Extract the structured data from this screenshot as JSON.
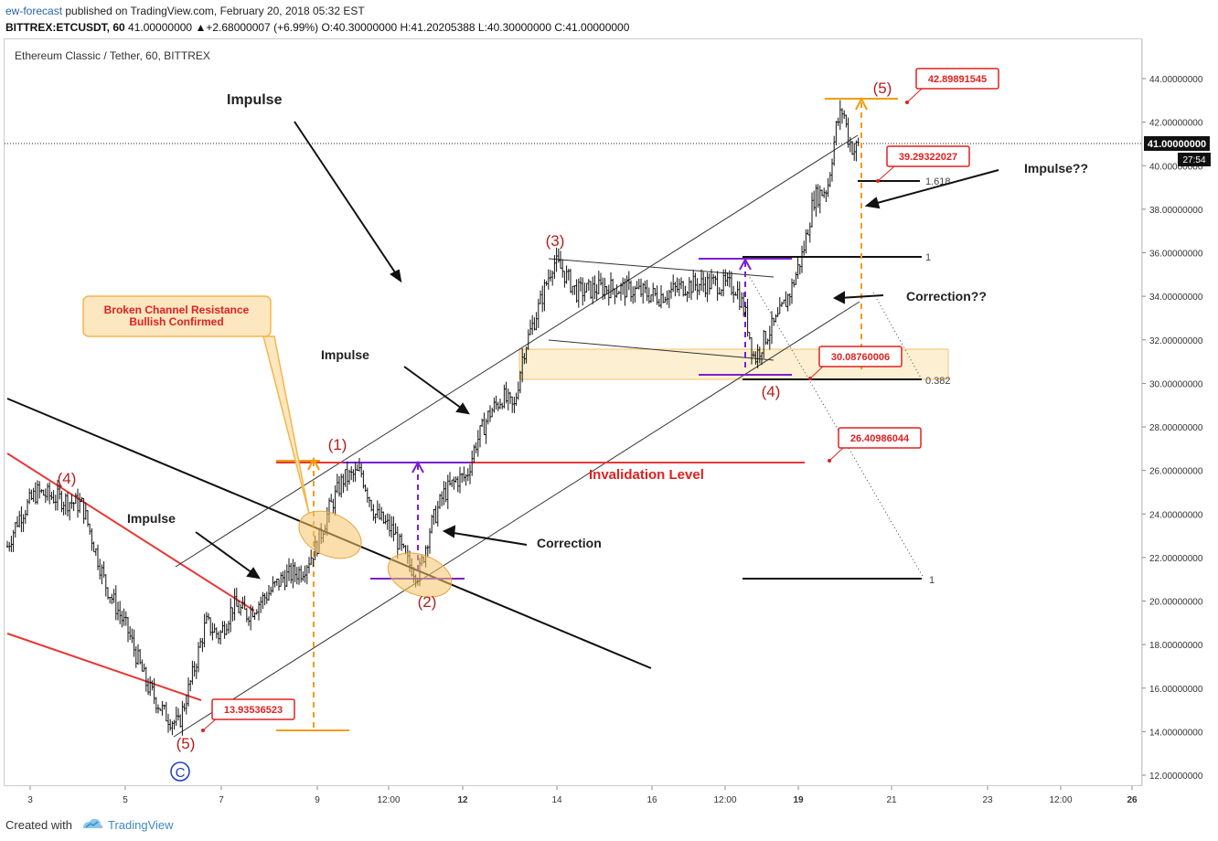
{
  "header": {
    "author": "ew-forecast",
    "published_text": "published on TradingView.com, February 20, 2018 05:32 EST",
    "ticker_line_prefix": "BITTREX:ETCUSDT, 60",
    "last_value": "41.00000000",
    "change": "+2.68000007 (+6.99%)",
    "ohlc": "O:40.30000000 H:41.20205388 L:40.30000000 C:41.00000000"
  },
  "symbol_title": "Ethereum Classic / Tether, 60, BITTREX",
  "footer": {
    "created_with": "Created with",
    "brand": "TradingView"
  },
  "colors": {
    "wave": "#b71c1c",
    "fib_orange": "#f39c12",
    "purple": "#7b1fd1",
    "red_line": "#e53935",
    "box_fill": "#fdf0d2",
    "label_red": "#e02020"
  },
  "chart_data": {
    "type": "candlestick",
    "ylim": [
      11.5,
      45.2
    ],
    "y_ticks": [
      "44.00000000",
      "42.00000000",
      "40.00000000",
      "38.00000000",
      "36.00000000",
      "34.00000000",
      "32.00000000",
      "30.00000000",
      "28.00000000",
      "26.00000000",
      "24.00000000",
      "22.00000000",
      "20.00000000",
      "18.00000000",
      "16.00000000",
      "14.00000000",
      "12.00000000"
    ],
    "x_ticks": [
      "3",
      "5",
      "7",
      "9",
      "12:00",
      "12",
      "14",
      "16",
      "12:00",
      "19",
      "21",
      "23",
      "12:00",
      "26"
    ],
    "current_price_label": "41.00000000",
    "countdown": "27:54",
    "price_path": [
      [
        7,
        22.4
      ],
      [
        20,
        23.8
      ],
      [
        40,
        25.0
      ],
      [
        65,
        24.7
      ],
      [
        90,
        24.4
      ],
      [
        115,
        20.8
      ],
      [
        140,
        18.6
      ],
      [
        160,
        16.2
      ],
      [
        180,
        14.8
      ],
      [
        195,
        14.3
      ],
      [
        210,
        16.5
      ],
      [
        225,
        19.0
      ],
      [
        240,
        18.4
      ],
      [
        255,
        19.8
      ],
      [
        270,
        19.4
      ],
      [
        290,
        20.2
      ],
      [
        310,
        21.1
      ],
      [
        330,
        21.4
      ],
      [
        345,
        22.4
      ],
      [
        360,
        24.2
      ],
      [
        375,
        25.6
      ],
      [
        395,
        25.9
      ],
      [
        410,
        24.0
      ],
      [
        430,
        23.2
      ],
      [
        445,
        21.8
      ],
      [
        458,
        21.2
      ],
      [
        470,
        23.3
      ],
      [
        485,
        24.9
      ],
      [
        500,
        25.6
      ],
      [
        510,
        25.7
      ],
      [
        520,
        27.2
      ],
      [
        535,
        28.6
      ],
      [
        550,
        29.4
      ],
      [
        562,
        28.8
      ],
      [
        572,
        31.4
      ],
      [
        590,
        33.6
      ],
      [
        605,
        35.6
      ],
      [
        615,
        35.2
      ],
      [
        630,
        34.2
      ],
      [
        660,
        34.4
      ],
      [
        690,
        34.3
      ],
      [
        720,
        34.0
      ],
      [
        750,
        34.5
      ],
      [
        780,
        34.6
      ],
      [
        805,
        34.4
      ],
      [
        815,
        33.2
      ],
      [
        825,
        31.1
      ],
      [
        838,
        32.2
      ],
      [
        850,
        32.9
      ],
      [
        865,
        34.3
      ],
      [
        878,
        36.0
      ],
      [
        890,
        38.5
      ],
      [
        905,
        39.0
      ],
      [
        915,
        41.9
      ],
      [
        922,
        42.6
      ],
      [
        928,
        41.2
      ],
      [
        934,
        40.7
      ],
      [
        940,
        41.0
      ]
    ],
    "annotations": {
      "wave_labels": [
        "(1)",
        "(2)",
        "(3)",
        "(4)",
        "(5)",
        "(4)",
        "(5)",
        "C"
      ],
      "text": [
        "Impulse",
        "Impulse",
        "Impulse",
        "Correction",
        "Impulse??",
        "Correction??",
        "Invalidation Level"
      ],
      "callout": "Broken Channel Resistance\nBullish Confirmed",
      "callout_line1": "Broken Channel Resistance",
      "callout_line2": "Bullish Confirmed",
      "price_boxes": [
        "42.89891545",
        "39.29322027",
        "30.08760006",
        "26.40986044",
        "13.93536523"
      ],
      "fib_labels": [
        "1.618",
        "1",
        "0.382",
        "1"
      ]
    }
  }
}
